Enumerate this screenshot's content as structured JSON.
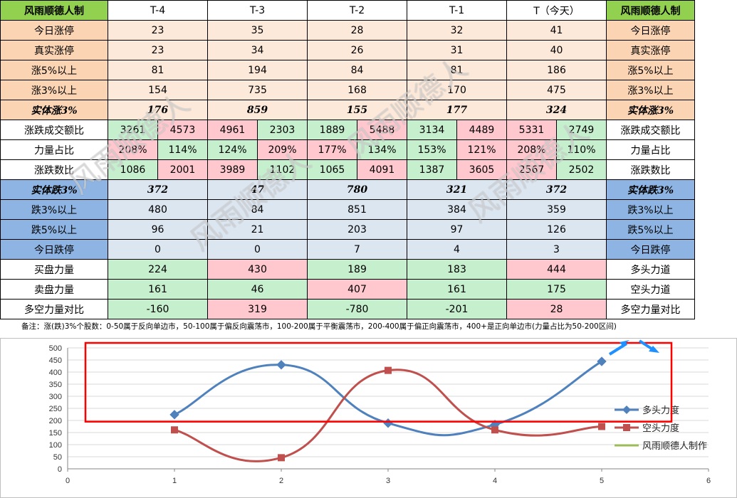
{
  "table": {
    "corner_label": "风雨顺德人制",
    "columns": [
      "T-4",
      "T-3",
      "T-2",
      "T-1",
      "T（今天）"
    ],
    "rows_up": [
      {
        "label": "今日涨停",
        "values": [
          "23",
          "35",
          "28",
          "32",
          "41"
        ]
      },
      {
        "label": "真实涨停",
        "values": [
          "23",
          "34",
          "26",
          "31",
          "40"
        ]
      },
      {
        "label": "涨5%以上",
        "values": [
          "81",
          "194",
          "84",
          "81",
          "186"
        ]
      },
      {
        "label": "涨3%以上",
        "values": [
          "154",
          "735",
          "168",
          "170",
          "475"
        ]
      }
    ],
    "solid_up": {
      "label": "实体涨3%",
      "values": [
        "176",
        "859",
        "155",
        "177",
        "324"
      ]
    },
    "ratio_rows": [
      {
        "label": "涨跌成交额比",
        "values": [
          "3261",
          "4573",
          "4961",
          "2303",
          "1889",
          "5488",
          "3134",
          "4489",
          "5331",
          "2749"
        ]
      },
      {
        "label": "力量占比",
        "values": [
          "208%",
          "114%",
          "124%",
          "209%",
          "177%",
          "134%",
          "153%",
          "121%",
          "208%",
          "110%"
        ]
      },
      {
        "label": "涨跌数比",
        "values": [
          "1086",
          "2001",
          "3989",
          "1102",
          "1065",
          "4091",
          "1387",
          "3605",
          "2567",
          "2502"
        ]
      }
    ],
    "solid_down": {
      "label": "实体跌3%",
      "values": [
        "372",
        "47",
        "780",
        "321",
        "372"
      ]
    },
    "rows_down": [
      {
        "label": "跌3%以上",
        "values": [
          "480",
          "84",
          "851",
          "384",
          "359"
        ]
      },
      {
        "label": "跌5%以上",
        "values": [
          "96",
          "21",
          "203",
          "97",
          "126"
        ]
      },
      {
        "label": "今日跌停",
        "values": [
          "0",
          "0",
          "7",
          "4",
          "3"
        ]
      }
    ],
    "force_rows": [
      {
        "label": "买盘力量",
        "right_label": "多头力道",
        "values": [
          "224",
          "430",
          "189",
          "183",
          "444"
        ]
      },
      {
        "label": "卖盘力量",
        "right_label": "空头力道",
        "values": [
          "161",
          "46",
          "407",
          "161",
          "175"
        ]
      },
      {
        "label": "多空力量对比",
        "right_label": "多空力量对比",
        "values": [
          "-160",
          "319",
          "-780",
          "-201",
          "28"
        ]
      }
    ]
  },
  "note": "备注：涨(跌)3%个股数：0-50属于反向单边市，50-100属于偏反向震荡市，100-200属于平衡震荡市，200-400属于偏正向震荡市，400+是正向单边市(力量占比为50-200区间)",
  "watermark": "风雨顺德人",
  "colors": {
    "series_long": "#4f81bd",
    "series_short": "#c0504d",
    "series_maker": "#9bbb59",
    "highlight_box": "#ff0000",
    "arrow": "#1e90ff"
  },
  "chart_data": {
    "type": "line",
    "smooth": true,
    "xlim": [
      0,
      6
    ],
    "ylim": [
      0,
      500
    ],
    "x_ticks": [
      "0",
      "1",
      "2",
      "3",
      "4",
      "5",
      "6"
    ],
    "y_ticks": [
      "0",
      "50",
      "100",
      "150",
      "200",
      "250",
      "300",
      "350",
      "400",
      "450",
      "500"
    ],
    "grid": "horizontal",
    "legend_position": "right",
    "series": [
      {
        "name": "多头力度",
        "marker": "diamond",
        "x": [
          1,
          2,
          3,
          4,
          5
        ],
        "values": [
          224,
          430,
          189,
          183,
          444
        ]
      },
      {
        "name": "空头力度",
        "marker": "square",
        "x": [
          1,
          2,
          3,
          4,
          5
        ],
        "values": [
          161,
          46,
          407,
          161,
          175
        ]
      },
      {
        "name": "风雨顺德人制作",
        "marker": "none",
        "x": [],
        "values": []
      }
    ],
    "highlight_box": {
      "y_range": [
        195,
        500
      ]
    }
  }
}
